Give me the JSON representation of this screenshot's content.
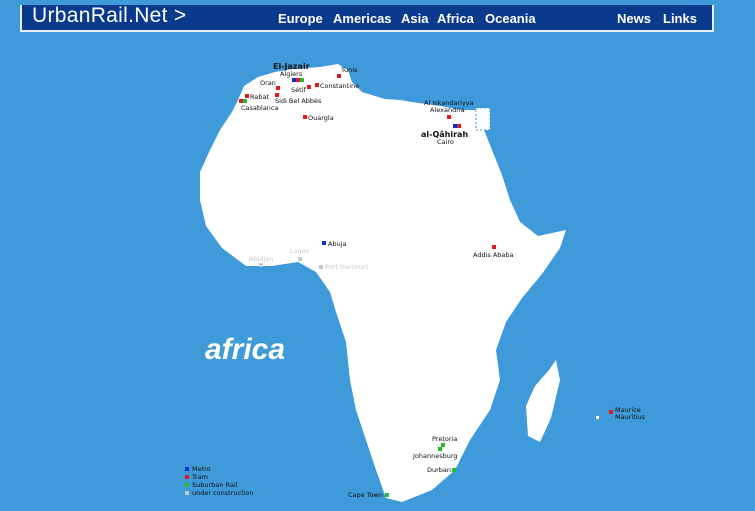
{
  "header": {
    "logo": "UrbanRail.Net >",
    "nav": [
      "Europe",
      "Americas",
      "Asia",
      "Africa",
      "Oceania"
    ],
    "right_nav": [
      "News",
      "Links"
    ]
  },
  "title": "africa",
  "colors": {
    "metro": "#0a2ee0",
    "tram": "#e01a1a",
    "suburban": "#1fbf2f",
    "construction": "#c8c8c8",
    "ocean": "#3e9ad8",
    "land": "#ffffff",
    "header": "#0a3a8c"
  },
  "cities": {
    "el_jazair": "El-Jazair",
    "algiers": "Algiers",
    "oran": "Oran",
    "setif": "Sétif",
    "constantine": "Constantine",
    "tunis": "Tunis",
    "rabat": "Rabat",
    "casablanca": "Casablanca",
    "sidi": "Sidi Bel Abbès",
    "ouargla": "Ouargla",
    "iskandariyya": "Al Iskandariyya",
    "alexandria": "Alexandria",
    "qahirah": "al-Qâhirah",
    "cairo": "Cairo",
    "abuja": "Abuja",
    "abidjan": "Abidjan",
    "lagos": "Lagos",
    "port_harcourt": "Port Harcourt",
    "addis": "Addis Ababa",
    "maurice": "Maurice",
    "mauritius": "Mauritius",
    "pretoria": "Pretoria",
    "johannesburg": "Johannesburg",
    "durban": "Durban",
    "cape_town": "Cape Town"
  },
  "legend": [
    "Metro",
    "Tram",
    "Suburban Rail",
    "under construction"
  ]
}
